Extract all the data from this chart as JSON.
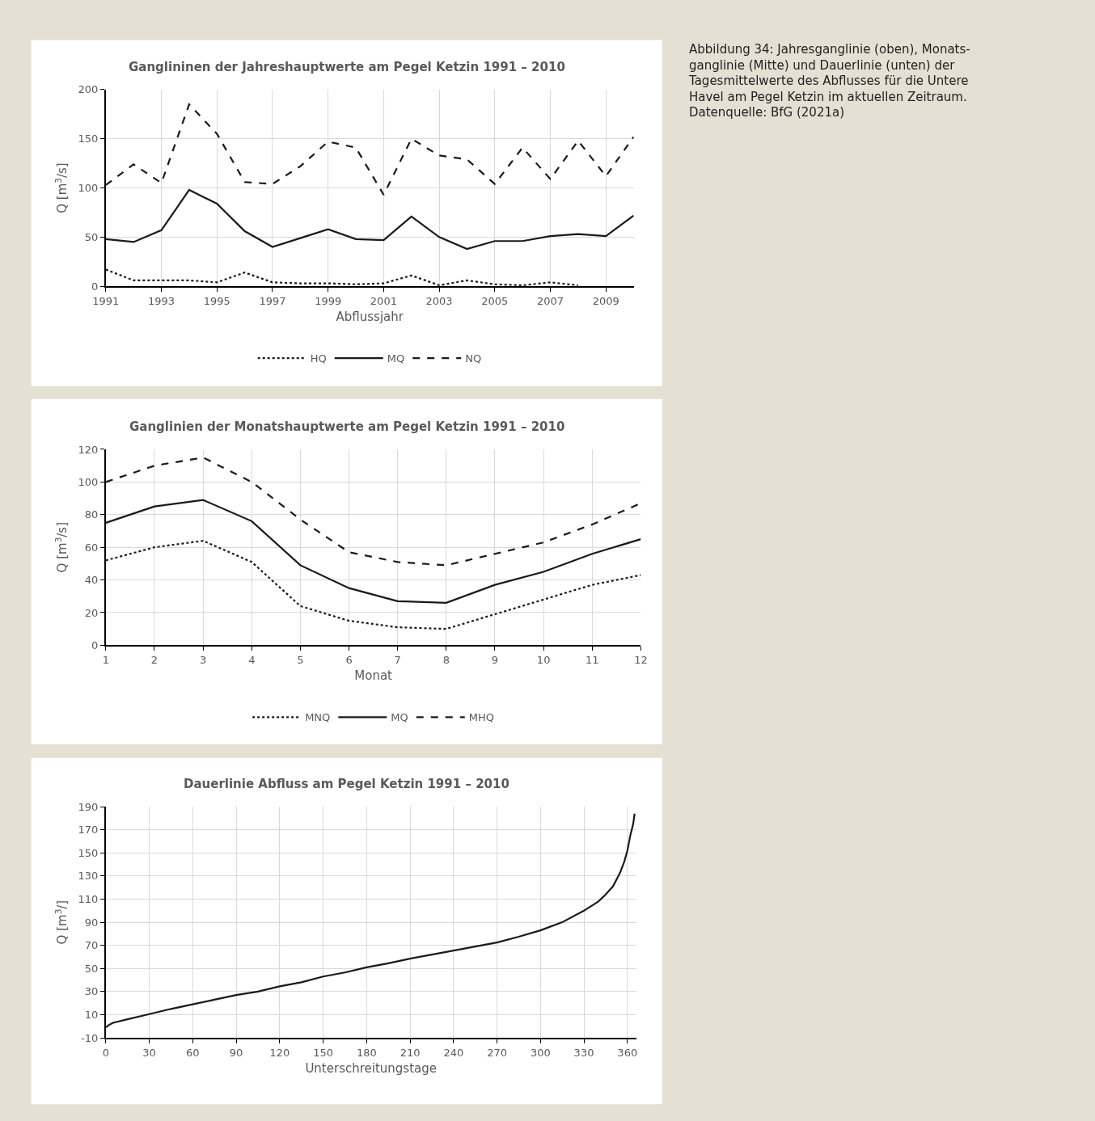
{
  "chart_data": [
    {
      "type": "line",
      "title": "Ganglininen der Jahreshauptwerte am Pegel Ketzin 1991 – 2010",
      "xlabel": "Abflussjahr",
      "ylabel": "Q [m$^{3}$/s]",
      "x": [
        1991,
        1992,
        1993,
        1994,
        1995,
        1996,
        1997,
        1998,
        1999,
        2000,
        2001,
        2002,
        2003,
        2004,
        2005,
        2006,
        2007,
        2008,
        2009,
        2010
      ],
      "series": [
        {
          "name": "HQ",
          "color": "#1a1a1a",
          "line_style": "dotted",
          "values": [
            17,
            6,
            6,
            6,
            4,
            14,
            4,
            3,
            3,
            2,
            3,
            11,
            1,
            6,
            2,
            1,
            4,
            1,
            null,
            null
          ]
        },
        {
          "name": "MQ",
          "color": "#1a1a1a",
          "line_style": "solid",
          "values": [
            48,
            45,
            57,
            98,
            84,
            56,
            40,
            49,
            58,
            48,
            47,
            71,
            50,
            38,
            46,
            46,
            51,
            53,
            51,
            72
          ]
        },
        {
          "name": "NQ",
          "color": "#1a1a1a",
          "line_style": "dashed",
          "values": [
            103,
            124,
            105,
            185,
            155,
            106,
            104,
            122,
            147,
            141,
            93,
            150,
            133,
            129,
            104,
            141,
            109,
            148,
            112,
            152
          ]
        }
      ],
      "xlim": [
        1991,
        2010
      ],
      "xticks": [
        1991,
        1993,
        1995,
        1997,
        1999,
        2001,
        2003,
        2005,
        2007,
        2009
      ],
      "ylim": [
        0,
        200
      ],
      "yticks": [
        0,
        50,
        100,
        150,
        200
      ],
      "grid": true,
      "legend": "bottom",
      "marker": "none",
      "annotations": [
        "Abbildung 34: Jahresganglinie (oben), Monats-\nganglinie (Mitte) und Dauerlinie (unten) der\nTagesmittelwerte des Abflusses für die Untere\nHavel am Pegel Ketzin im aktuellen Zeitraum.\nDatenquelle: BfG (2021a)"
      ]
    },
    {
      "type": "line",
      "title": "Ganglinien der Monatshauptwerte am Pegel Ketzin 1991 – 2010",
      "xlabel": "Monat",
      "ylabel": "Q [m$^{3}$/s]",
      "x": [
        1,
        2,
        3,
        4,
        5,
        6,
        7,
        8,
        9,
        10,
        11,
        12
      ],
      "series": [
        {
          "name": "MNQ",
          "color": "#1a1a1a",
          "line_style": "dotted",
          "values": [
            52,
            60,
            64,
            51,
            24,
            15,
            11,
            10,
            19,
            28,
            37,
            43
          ]
        },
        {
          "name": "MQ",
          "color": "#1a1a1a",
          "line_style": "solid",
          "values": [
            75,
            85,
            89,
            76,
            49,
            35,
            27,
            26,
            37,
            45,
            56,
            65
          ]
        },
        {
          "name": "MHQ",
          "color": "#1a1a1a",
          "line_style": "dashed",
          "values": [
            100,
            110,
            115,
            100,
            77,
            57,
            51,
            49,
            56,
            63,
            74,
            87
          ]
        }
      ],
      "xlim": [
        1,
        12
      ],
      "xticks": [
        1,
        2,
        3,
        4,
        5,
        6,
        7,
        8,
        9,
        10,
        11,
        12
      ],
      "ylim": [
        0,
        120
      ],
      "yticks": [
        0,
        20,
        40,
        60,
        80,
        100,
        120
      ],
      "grid": true,
      "legend": "bottom",
      "marker": "none"
    },
    {
      "type": "line",
      "title": "Dauerlinie Abfluss am Pegel Ketzin 1991 – 2010",
      "xlabel": "Unterschreitungstage",
      "ylabel": "Q [m$^{3}$/]",
      "x": [
        0,
        2,
        5,
        15,
        30,
        45,
        60,
        75,
        90,
        105,
        120,
        135,
        150,
        165,
        180,
        195,
        210,
        225,
        240,
        255,
        270,
        285,
        300,
        315,
        330,
        340,
        345,
        350,
        355,
        358,
        360,
        362,
        364,
        365
      ],
      "series": [
        {
          "color": "#1a1a1a",
          "line_style": "solid",
          "values": [
            -1,
            1,
            3,
            6,
            10.5,
            15,
            19,
            23,
            27,
            30,
            34.5,
            38,
            43,
            46.5,
            51,
            54.5,
            58.5,
            62,
            65.5,
            69,
            72.5,
            77.5,
            83,
            90,
            100,
            108,
            114,
            121,
            133,
            143,
            152,
            165,
            175,
            184
          ]
        }
      ],
      "xlim": [
        0,
        366
      ],
      "xticks": [
        0,
        30,
        60,
        90,
        120,
        150,
        180,
        210,
        240,
        270,
        300,
        330,
        360
      ],
      "ylim": [
        -10,
        190
      ],
      "yticks": [
        -10,
        10,
        30,
        50,
        70,
        90,
        110,
        130,
        150,
        170,
        190
      ],
      "grid": true,
      "marker": "none"
    }
  ]
}
